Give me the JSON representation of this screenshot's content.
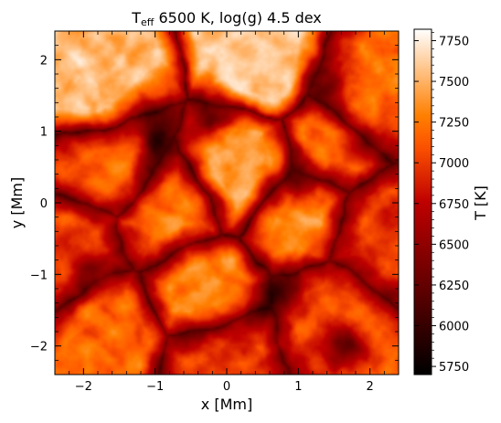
{
  "chart_data": {
    "type": "heatmap",
    "title": {
      "prefix": "T",
      "subscript": "eff",
      "suffix": " 6500 K, log(g) 4.5 dex"
    },
    "xlabel": "x [Mm]",
    "ylabel": "y [Mm]",
    "xlim": [
      -2.4,
      2.4
    ],
    "ylim": [
      -2.4,
      2.4
    ],
    "x_ticks": [
      -2,
      -1,
      0,
      1,
      2
    ],
    "y_ticks": [
      -2,
      -1,
      0,
      1,
      2
    ],
    "x_tick_labels": [
      "−2",
      "−1",
      "0",
      "1",
      "2"
    ],
    "y_tick_labels": [
      "−2",
      "−1",
      "0",
      "1",
      "2"
    ],
    "grid": false,
    "colormap": "gist_heat",
    "colorbar": {
      "label": "T [K]",
      "range": [
        5700,
        7820
      ],
      "ticks": [
        5750,
        6000,
        6250,
        6500,
        6750,
        7000,
        7250,
        7500,
        7750
      ],
      "tick_labels": [
        "5750",
        "6000",
        "6250",
        "6500",
        "6750",
        "7000",
        "7250",
        "7500",
        "7750"
      ]
    },
    "features": {
      "granules": [
        {
          "x": 0.55,
          "y": 1.85,
          "T": 7620
        },
        {
          "x": -1.9,
          "y": 1.55,
          "T": 7550
        },
        {
          "x": -1.6,
          "y": 0.5,
          "T": 7200
        },
        {
          "x": -0.9,
          "y": -0.1,
          "T": 7250
        },
        {
          "x": -0.3,
          "y": -1.2,
          "T": 7350
        },
        {
          "x": 1.1,
          "y": -0.2,
          "T": 7300
        },
        {
          "x": 1.35,
          "y": 0.75,
          "T": 7250
        },
        {
          "x": 0.3,
          "y": 0.5,
          "T": 7450
        },
        {
          "x": 1.9,
          "y": 1.4,
          "T": 7200
        },
        {
          "x": -1.6,
          "y": -1.8,
          "T": 7200
        },
        {
          "x": 1.5,
          "y": -1.6,
          "T": 7150
        },
        {
          "x": -2.1,
          "y": -0.6,
          "T": 7050
        },
        {
          "x": 0.0,
          "y": -2.2,
          "T": 7000
        },
        {
          "x": 2.15,
          "y": -0.5,
          "T": 7000
        }
      ],
      "intergranular_lanes": [
        {
          "x": -0.9,
          "y": 0.9,
          "T": 5850
        },
        {
          "x": 0.95,
          "y": 0.3,
          "T": 6050
        },
        {
          "x": 0.7,
          "y": -1.3,
          "T": 5850
        },
        {
          "x": 1.4,
          "y": 1.6,
          "T": 6100
        },
        {
          "x": -0.2,
          "y": 1.1,
          "T": 6100
        },
        {
          "x": 1.6,
          "y": -2.1,
          "T": 6050
        },
        {
          "x": -1.8,
          "y": -1.0,
          "T": 6300
        }
      ]
    }
  }
}
